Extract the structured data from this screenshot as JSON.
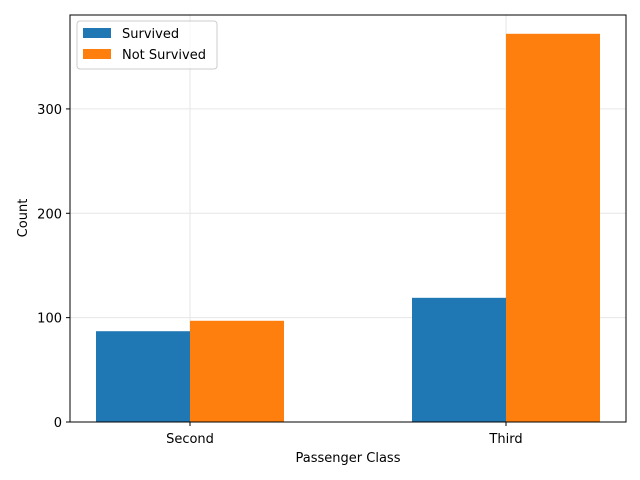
{
  "chart_data": {
    "type": "bar",
    "categories": [
      "Second",
      "Third"
    ],
    "series": [
      {
        "name": "Survived",
        "values": [
          87,
          119
        ],
        "color": "#1f77b4"
      },
      {
        "name": "Not Survived",
        "values": [
          97,
          372
        ],
        "color": "#ff7f0e"
      }
    ],
    "xlabel": "Passenger Class",
    "ylabel": "Count",
    "ylim": [
      0,
      390
    ],
    "yticks": [
      0,
      100,
      200,
      300
    ],
    "grid": true,
    "legend_position": "top-left"
  }
}
